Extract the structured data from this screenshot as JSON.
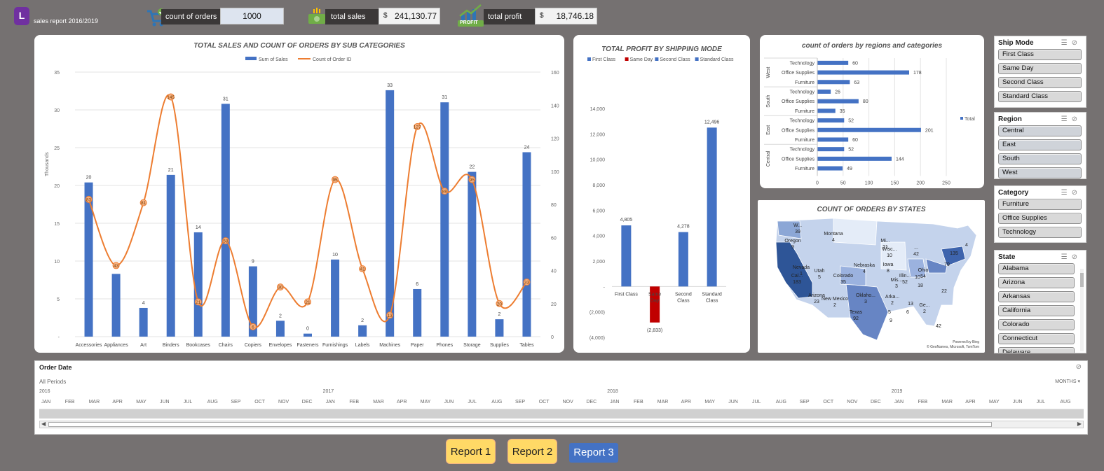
{
  "header": {
    "app_title": "sales report 2016/2019",
    "kpi_orders_label": "count of orders",
    "kpi_orders_value": "1000",
    "kpi_sales_label": "total sales",
    "kpi_sales_currency": "$",
    "kpi_sales_value": "241,130.77",
    "kpi_profit_label": "total profit",
    "kpi_profit_currency": "$",
    "kpi_profit_value": "18,746.18",
    "profit_badge": "PROFIT"
  },
  "colors": {
    "bar_blue": "#4472c4",
    "line_orange": "#ed7d31",
    "same_day_red": "#c00000",
    "map_dark": "#2e5597",
    "map_light": "#dce6f5",
    "bg": "#757171"
  },
  "chart_data": [
    {
      "type": "bar",
      "title": "TOTAL SALES AND COUNT OF ORDERS BY SUB CATEGORIES",
      "ylabel": "Thousands",
      "categories": [
        "Accessories",
        "Appliances",
        "Art",
        "Binders",
        "Bookcases",
        "Chairs",
        "Copiers",
        "Envelopes",
        "Fasteners",
        "Furnishings",
        "Labels",
        "Machines",
        "Paper",
        "Phones",
        "Storage",
        "Supplies",
        "Tables"
      ],
      "series": [
        {
          "name": "Sum of Sales",
          "axis": "left",
          "values": [
            20.4,
            8.3,
            3.8,
            21.4,
            13.8,
            30.8,
            9.3,
            2.1,
            0.4,
            10.2,
            1.5,
            32.6,
            6.3,
            31.0,
            21.8,
            2.3,
            24.4
          ],
          "labels": [
            "20",
            "",
            "4",
            "21",
            "14",
            "31",
            "9",
            "2",
            "0",
            "10",
            "2",
            "33",
            "6",
            "31",
            "22",
            "2",
            "24"
          ]
        },
        {
          "name": "Count of Order ID",
          "axis": "right",
          "values": [
            83,
            43,
            81,
            145,
            21,
            58,
            6,
            30,
            21,
            95,
            41,
            13,
            127,
            88,
            95,
            20,
            33
          ],
          "labels": [
            "83",
            "43",
            "81",
            "145",
            "21",
            "58",
            "6",
            "30",
            "21",
            "95",
            "41",
            "13",
            "127",
            "88",
            "95",
            "20",
            "33"
          ]
        }
      ],
      "ylim": [
        0,
        35
      ],
      "y2lim": [
        0,
        160
      ],
      "yticks": [
        "-",
        "5",
        "10",
        "15",
        "20",
        "25",
        "30",
        "35"
      ],
      "y2ticks": [
        "0",
        "20",
        "40",
        "60",
        "80",
        "100",
        "120",
        "140",
        "160"
      ],
      "legend": "top"
    },
    {
      "type": "bar",
      "title": "TOTAL PROFIT BY SHIPPING MODE",
      "categories": [
        "First Class",
        "Same Day",
        "Second Class",
        "Standard Class"
      ],
      "values": [
        4805,
        -2833,
        4278,
        12496
      ],
      "labels": [
        "4,805",
        "(2,833)",
        "4,278",
        "12,496"
      ],
      "ylim": [
        -4000,
        14000
      ],
      "yticks": [
        "(4,000)",
        "(2,000)",
        "-",
        "2,000",
        "4,000",
        "6,000",
        "8,000",
        "10,000",
        "12,000",
        "14,000"
      ],
      "legend": "top"
    },
    {
      "type": "bar",
      "orientation": "horizontal",
      "title": "count of orders by regions and categories",
      "groups": [
        {
          "region": "West",
          "items": [
            {
              "cat": "Technology",
              "value": 60
            },
            {
              "cat": "Office Supplies",
              "value": 178
            },
            {
              "cat": "Furniture",
              "value": 63
            }
          ]
        },
        {
          "region": "South",
          "items": [
            {
              "cat": "Technology",
              "value": 26
            },
            {
              "cat": "Office Supplies",
              "value": 80
            },
            {
              "cat": "Furniture",
              "value": 35
            }
          ]
        },
        {
          "region": "East",
          "items": [
            {
              "cat": "Technology",
              "value": 52
            },
            {
              "cat": "Office Supplies",
              "value": 201
            },
            {
              "cat": "Furniture",
              "value": 60
            }
          ]
        },
        {
          "region": "Central",
          "items": [
            {
              "cat": "Technology",
              "value": 52
            },
            {
              "cat": "Office Supplies",
              "value": 144
            },
            {
              "cat": "Furniture",
              "value": 49
            }
          ]
        }
      ],
      "xlim": [
        0,
        250
      ],
      "xticks": [
        "0",
        "50",
        "100",
        "150",
        "200",
        "250"
      ],
      "series_name": "Total",
      "legend": "right"
    }
  ],
  "map": {
    "title": "COUNT OF ORDERS BY STATES",
    "credit1": "Powered by Bing",
    "credit2": "© GeoNames, Microsoft, TomTom",
    "labels": [
      {
        "t": "W...",
        "v": "39"
      },
      {
        "t": "Oregon",
        "v": "9"
      },
      {
        "t": "Montana",
        "v": "4"
      },
      {
        "t": "Mi...",
        "v": "21"
      },
      {
        "t": "Wisc...",
        "v": "10"
      },
      {
        "t": "...",
        "v": "42"
      },
      {
        "t": "Nevada",
        "v": "1"
      },
      {
        "t": "Utah",
        "v": "5"
      },
      {
        "t": "Colorado",
        "v": "35"
      },
      {
        "t": "Nebraska",
        "v": "4"
      },
      {
        "t": "Iowa",
        "v": "8"
      },
      {
        "t": "Illin...",
        "v": "52"
      },
      {
        "t": "Ohio",
        "v": "54"
      },
      {
        "t": "",
        "v": "135"
      },
      {
        "t": "",
        "v": "4"
      },
      {
        "t": "",
        "v": "79"
      },
      {
        "t": "Cal...",
        "v": "183"
      },
      {
        "t": "Arizona",
        "v": "23"
      },
      {
        "t": "New Mexico",
        "v": "2"
      },
      {
        "t": "Oklaho...",
        "v": "3"
      },
      {
        "t": "Mis...",
        "v": "3"
      },
      {
        "t": "",
        "v": "10"
      },
      {
        "t": "",
        "v": "18"
      },
      {
        "t": "",
        "v": "22"
      },
      {
        "t": "Arka...",
        "v": "2"
      },
      {
        "t": "",
        "v": "13"
      },
      {
        "t": "Ge...",
        "v": "2"
      },
      {
        "t": "",
        "v": "6"
      },
      {
        "t": "Texas",
        "v": "92"
      },
      {
        "t": "",
        "v": "9"
      },
      {
        "t": "",
        "v": "42"
      },
      {
        "t": "",
        "v": "5"
      }
    ]
  },
  "slicers": {
    "ship_mode": {
      "title": "Ship Mode",
      "items": [
        "First Class",
        "Same Day",
        "Second Class",
        "Standard Class"
      ]
    },
    "region": {
      "title": "Region",
      "items": [
        "Central",
        "East",
        "South",
        "West"
      ]
    },
    "category": {
      "title": "Category",
      "items": [
        "Furniture",
        "Office Supplies",
        "Technology"
      ]
    },
    "state": {
      "title": "State",
      "items": [
        "Alabama",
        "Arizona",
        "Arkansas",
        "California",
        "Colorado",
        "Connecticut",
        "Delaware"
      ]
    }
  },
  "timeline": {
    "title": "Order Date",
    "periods": "All Periods",
    "unit": "MONTHS",
    "years": [
      "2016",
      "2017",
      "2018",
      "2019"
    ],
    "months": [
      "JAN",
      "FEB",
      "MAR",
      "APR",
      "MAY",
      "JUN",
      "JUL",
      "AUG",
      "SEP",
      "OCT",
      "NOV",
      "DEC",
      "JAN",
      "FEB",
      "MAR",
      "APR",
      "MAY",
      "JUN",
      "JUL",
      "AUG",
      "SEP",
      "OCT",
      "NOV",
      "DEC",
      "JAN",
      "FEB",
      "MAR",
      "APR",
      "MAY",
      "JUN",
      "JUL",
      "AUG",
      "SEP",
      "OCT",
      "NOV",
      "DEC",
      "JAN",
      "FEB",
      "MAR",
      "APR",
      "MAY",
      "JUN",
      "JUL",
      "AUG"
    ]
  },
  "nav": {
    "report1": "Report 1",
    "report2": "Report 2",
    "report3": "Report 3"
  }
}
